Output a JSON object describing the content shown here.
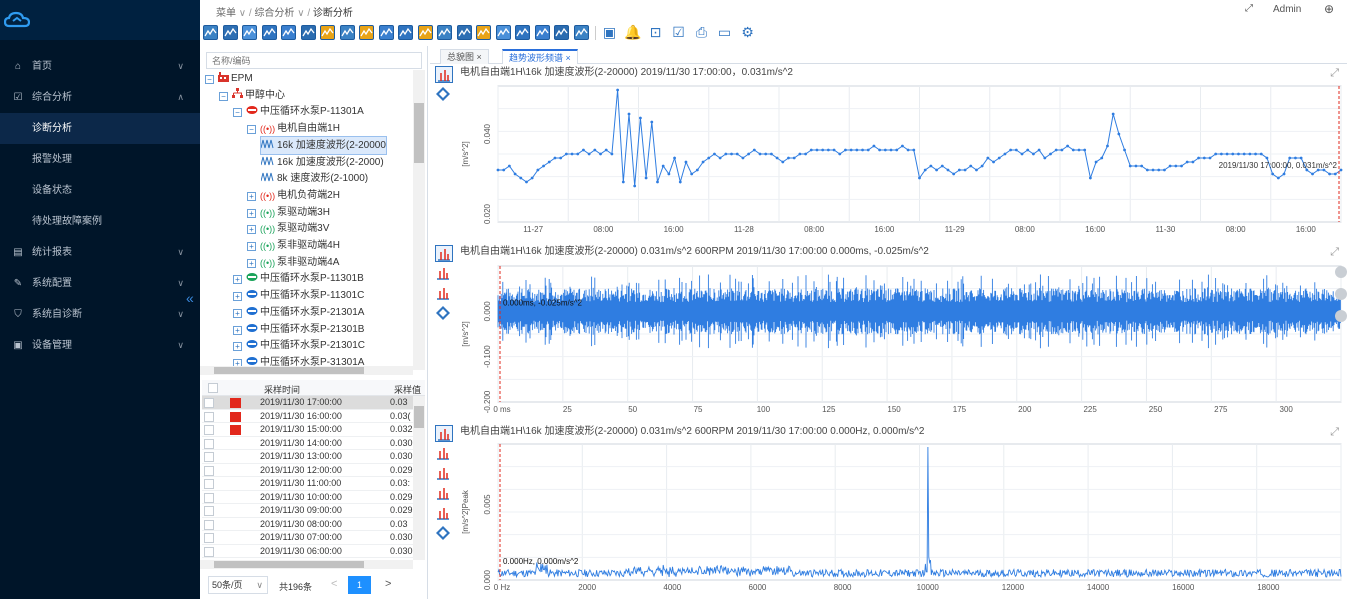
{
  "topbar": {
    "breadcrumb": [
      "菜单",
      "综合分析",
      "诊断分析"
    ],
    "user": "Admin"
  },
  "sidebar": {
    "items": [
      {
        "icon": "home-icon",
        "label": "首页",
        "chevron": "∨"
      },
      {
        "icon": "analysis-icon",
        "label": "综合分析",
        "chevron": "∧"
      },
      {
        "label": "诊断分析",
        "sub": true
      },
      {
        "label": "报警处理",
        "sub": true
      },
      {
        "label": "设备状态",
        "sub": true
      },
      {
        "label": "待处理故障案例",
        "sub": true
      },
      {
        "icon": "report-icon",
        "label": "统计报表",
        "chevron": "∨"
      },
      {
        "icon": "wrench-icon",
        "label": "系统配置",
        "chevron": "∨"
      },
      {
        "icon": "shield-icon",
        "label": "系统自诊断",
        "chevron": "∨"
      },
      {
        "icon": "device-icon",
        "label": "设备管理",
        "chevron": "∨"
      }
    ],
    "collapse": "«"
  },
  "tree": {
    "search_placeholder": "名称/编码",
    "nodes": [
      {
        "indent": 0,
        "exp": "−",
        "icon": "factory",
        "label": "EPM"
      },
      {
        "indent": 1,
        "exp": "−",
        "icon": "org",
        "label": "甲醇中心"
      },
      {
        "indent": 2,
        "exp": "−",
        "icon": "pump-red",
        "label": "中压循环水泵P-11301A"
      },
      {
        "indent": 3,
        "exp": "−",
        "icon": "sensor-red",
        "label": "电机自由端1H"
      },
      {
        "indent": 4,
        "exp": "",
        "icon": "wave",
        "label": "16k 加速度波形(2-20000",
        "selected": true
      },
      {
        "indent": 4,
        "exp": "",
        "icon": "wave",
        "label": "16k 加速度波形(2-2000)"
      },
      {
        "indent": 4,
        "exp": "",
        "icon": "wave",
        "label": "8k 速度波形(2-1000)"
      },
      {
        "indent": 3,
        "exp": "+",
        "icon": "sensor-red",
        "label": "电机负荷端2H"
      },
      {
        "indent": 3,
        "exp": "+",
        "icon": "sensor-green",
        "label": "泵驱动端3H"
      },
      {
        "indent": 3,
        "exp": "+",
        "icon": "sensor-green",
        "label": "泵驱动端3V"
      },
      {
        "indent": 3,
        "exp": "+",
        "icon": "sensor-green",
        "label": "泵非驱动端4H"
      },
      {
        "indent": 3,
        "exp": "+",
        "icon": "sensor-green",
        "label": "泵非驱动端4A"
      },
      {
        "indent": 2,
        "exp": "+",
        "icon": "pump-green",
        "label": "中压循环水泵P-11301B"
      },
      {
        "indent": 2,
        "exp": "+",
        "icon": "pump-blue",
        "label": "中压循环水泵P-11301C"
      },
      {
        "indent": 2,
        "exp": "+",
        "icon": "pump-blue",
        "label": "中压循环水泵P-21301A"
      },
      {
        "indent": 2,
        "exp": "+",
        "icon": "pump-blue",
        "label": "中压循环水泵P-21301B"
      },
      {
        "indent": 2,
        "exp": "+",
        "icon": "pump-blue",
        "label": "中压循环水泵P-21301C"
      },
      {
        "indent": 2,
        "exp": "+",
        "icon": "pump-blue",
        "label": "中压循环水泵P-31301A"
      }
    ]
  },
  "table": {
    "headers": [
      "采样时间",
      "采样值"
    ],
    "rows": [
      {
        "time": "2019/11/30 17:00:00",
        "value": "0.03",
        "alarm": true,
        "selected": true
      },
      {
        "time": "2019/11/30 16:00:00",
        "value": "0.03(",
        "alarm": true
      },
      {
        "time": "2019/11/30 15:00:00",
        "value": "0.032",
        "alarm": true
      },
      {
        "time": "2019/11/30 14:00:00",
        "value": "0.030",
        "alarm": false
      },
      {
        "time": "2019/11/30 13:00:00",
        "value": "0.030",
        "alarm": false
      },
      {
        "time": "2019/11/30 12:00:00",
        "value": "0.029",
        "alarm": false
      },
      {
        "time": "2019/11/30 11:00:00",
        "value": "0.03:",
        "alarm": false
      },
      {
        "time": "2019/11/30 10:00:00",
        "value": "0.029",
        "alarm": false
      },
      {
        "time": "2019/11/30 09:00:00",
        "value": "0.029",
        "alarm": false
      },
      {
        "time": "2019/11/30 08:00:00",
        "value": "0.03",
        "alarm": false
      },
      {
        "time": "2019/11/30 07:00:00",
        "value": "0.030",
        "alarm": false
      },
      {
        "time": "2019/11/30 06:00:00",
        "value": "0.030",
        "alarm": false
      }
    ]
  },
  "pager": {
    "page_size": "50条/页",
    "total": "共196条",
    "current": "1",
    "prev": "<",
    "next": ">"
  },
  "tabs": [
    {
      "label": "总貌图 ×",
      "active": false
    },
    {
      "label": "趋势波形频谱 ×",
      "active": true
    }
  ],
  "panels": [
    {
      "title": "电机自由端1H\\16k 加速度波形(2-20000) 2019/11/30 17:00:00，0.031m/s^2",
      "cursor": "2019/11/30 17:00:00,  0.031m/s^2"
    },
    {
      "title": "电机自由端1H\\16k 加速度波形(2-20000) 0.031m/s^2 600RPM 2019/11/30 17:00:00 0.000ms,  -0.025m/s^2",
      "cursor": "0.000ms,  -0.025m/s^2"
    },
    {
      "title": "电机自由端1H\\16k 加速度波形(2-20000) 0.031m/s^2 600RPM 2019/11/30 17:00:00 0.000Hz,  0.000m/s^2",
      "cursor": "0.000Hz,  0.000m/s^2"
    }
  ],
  "chart_data": [
    {
      "type": "line",
      "title": "电机自由端1H\\16k 加速度波形(2-20000) 2019/11/30 17:00:00，0.031m/s^2",
      "ylabel": "[m/s^2]",
      "ylim": [
        0.018,
        0.052
      ],
      "yticks": [
        "0.020",
        "0.040"
      ],
      "xticks": [
        "11-27",
        "08:00",
        "16:00",
        "11-28",
        "08:00",
        "16:00",
        "11-29",
        "08:00",
        "16:00",
        "11-30",
        "08:00",
        "16:00"
      ],
      "series_color": "#2f7de1",
      "values": [
        0.031,
        0.031,
        0.032,
        0.03,
        0.029,
        0.028,
        0.029,
        0.031,
        0.032,
        0.033,
        0.034,
        0.034,
        0.035,
        0.035,
        0.035,
        0.036,
        0.035,
        0.036,
        0.035,
        0.036,
        0.035,
        0.051,
        0.028,
        0.045,
        0.027,
        0.044,
        0.029,
        0.043,
        0.028,
        0.032,
        0.03,
        0.034,
        0.028,
        0.033,
        0.03,
        0.031,
        0.033,
        0.034,
        0.035,
        0.034,
        0.035,
        0.035,
        0.035,
        0.034,
        0.035,
        0.036,
        0.035,
        0.035,
        0.035,
        0.034,
        0.033,
        0.034,
        0.034,
        0.035,
        0.035,
        0.036,
        0.036,
        0.036,
        0.036,
        0.036,
        0.035,
        0.036,
        0.036,
        0.036,
        0.036,
        0.036,
        0.037,
        0.036,
        0.036,
        0.036,
        0.036,
        0.037,
        0.036,
        0.036,
        0.029,
        0.031,
        0.032,
        0.031,
        0.032,
        0.031,
        0.03,
        0.031,
        0.031,
        0.032,
        0.031,
        0.032,
        0.034,
        0.033,
        0.034,
        0.035,
        0.036,
        0.036,
        0.035,
        0.036,
        0.035,
        0.036,
        0.034,
        0.035,
        0.036,
        0.036,
        0.037,
        0.036,
        0.036,
        0.036,
        0.029,
        0.033,
        0.034,
        0.037,
        0.045,
        0.04,
        0.036,
        0.032,
        0.032,
        0.032,
        0.031,
        0.031,
        0.031,
        0.031,
        0.032,
        0.032,
        0.032,
        0.033,
        0.033,
        0.034,
        0.034,
        0.034,
        0.035,
        0.035,
        0.035,
        0.035,
        0.035,
        0.035,
        0.035,
        0.035,
        0.035,
        0.034,
        0.03,
        0.029,
        0.03,
        0.034,
        0.034,
        0.034,
        0.031,
        0.03,
        0.031,
        0.031,
        0.03,
        0.03,
        0.031
      ]
    },
    {
      "type": "line",
      "title": "电机自由端1H\\16k 加速度波形(2-20000) 0.031m/s^2 600RPM 2019/11/30 17:00:00 0.000ms,  -0.025m/s^2",
      "ylabel": "[m/s^2]",
      "ylim": [
        -0.2,
        0.1
      ],
      "yticks": [
        "0.000",
        "-0.100",
        "-0.200"
      ],
      "xticks": [
        "0 ms",
        "25",
        "50",
        "75",
        "100",
        "125",
        "150",
        "175",
        "200",
        "225",
        "250",
        "275",
        "300"
      ],
      "xlim": [
        0,
        315
      ],
      "series_color": "#2f7de1",
      "amplitude": 0.06,
      "offset": 0.0
    },
    {
      "type": "line",
      "title": "电机自由端1H\\16k 加速度波形(2-20000) 0.031m/s^2 600RPM 2019/11/30 17:00:00 0.000Hz,  0.000m/s^2",
      "ylabel": "[m/s^2]Peak",
      "ylim": [
        0,
        0.009
      ],
      "yticks": [
        "0.000",
        "0.005"
      ],
      "xticks": [
        "0 Hz",
        "2000",
        "4000",
        "6000",
        "8000",
        "10000",
        "12000",
        "14000",
        "16000",
        "18000"
      ],
      "xlim": [
        0,
        20000
      ],
      "series_color": "#2f7de1",
      "peak": {
        "x": 10200,
        "y": 0.0088
      }
    }
  ]
}
